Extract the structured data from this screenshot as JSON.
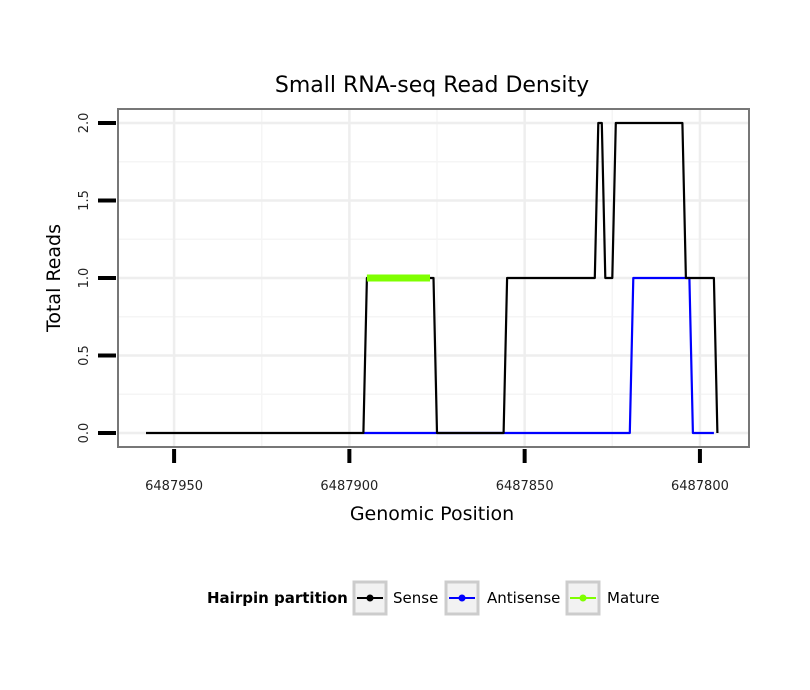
{
  "chart_data": {
    "type": "line",
    "title": "Small RNA-seq Read Density",
    "xlabel": "Genomic Position",
    "ylabel": "Total Reads",
    "x_reversed": true,
    "xlim": [
      6487966,
      6487786
    ],
    "ylim": [
      -0.09,
      2.09
    ],
    "x_ticks": [
      6487950,
      6487900,
      6487850,
      6487800
    ],
    "x_tick_labels": [
      "6487950",
      "6487900",
      "6487850",
      "6487800"
    ],
    "y_ticks": [
      0,
      0.5,
      1,
      1.5,
      2
    ],
    "y_tick_labels": [
      "0.0",
      "0.5",
      "1.0",
      "1.5",
      "2.0"
    ],
    "grid": true,
    "legend": {
      "title": "Hairpin partition",
      "position": "bottom",
      "entries": [
        "Sense",
        "Antisense",
        "Mature"
      ]
    },
    "series": [
      {
        "name": "Sense",
        "color": "#000000",
        "x": [
          6487958,
          6487896,
          6487895,
          6487876,
          6487875,
          6487856,
          6487855,
          6487830,
          6487829,
          6487828,
          6487827,
          6487825,
          6487824,
          6487805,
          6487804,
          6487796,
          6487795
        ],
        "y": [
          0,
          0,
          1,
          1,
          0,
          0,
          1,
          1,
          2,
          2,
          1,
          1,
          2,
          2,
          1,
          1,
          0
        ]
      },
      {
        "name": "Antisense",
        "color": "#0000ff",
        "x": [
          6487896,
          6487820,
          6487819,
          6487803,
          6487802,
          6487796
        ],
        "y": [
          0,
          0,
          1,
          1,
          0,
          0
        ]
      },
      {
        "name": "Mature",
        "color": "#7fff00",
        "x": [
          6487895,
          6487877
        ],
        "y": [
          1,
          1
        ]
      }
    ]
  }
}
